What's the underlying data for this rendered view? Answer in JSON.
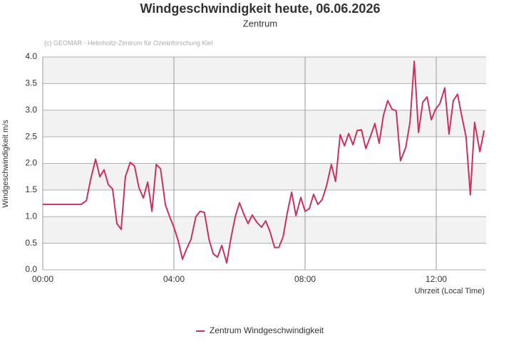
{
  "chart_data": {
    "type": "line",
    "title": "Windgeschwindigkeit heute, 06.06.2026",
    "subtitle": "Zentrum",
    "credit": "(c) GEOMAR - Helmholtz-Zentrum für Ozeanforschung Kiel",
    "y_label": "Windgeschwindigkeit m/s",
    "x_label": "Uhrzeit (Local Time)",
    "x": [
      0,
      1.17,
      1.33,
      1.46,
      1.61,
      1.74,
      1.87,
      2.0,
      2.13,
      2.26,
      2.39,
      2.52,
      2.67,
      2.8,
      2.93,
      3.07,
      3.2,
      3.33,
      3.46,
      3.59,
      3.74,
      3.87,
      4.0,
      4.13,
      4.26,
      4.39,
      4.52,
      4.67,
      4.8,
      4.93,
      5.07,
      5.2,
      5.33,
      5.46,
      5.61,
      5.74,
      5.87,
      6.0,
      6.13,
      6.26,
      6.39,
      6.52,
      6.67,
      6.8,
      6.93,
      7.07,
      7.2,
      7.33,
      7.46,
      7.59,
      7.72,
      7.87,
      8.0,
      8.13,
      8.26,
      8.39,
      8.52,
      8.65,
      8.8,
      8.93,
      9.07,
      9.2,
      9.33,
      9.46,
      9.59,
      9.72,
      9.85,
      10.0,
      10.13,
      10.26,
      10.39,
      10.52,
      10.65,
      10.78,
      10.91,
      11.07,
      11.2,
      11.33,
      11.46,
      11.59,
      11.72,
      11.85,
      11.98,
      12.11,
      12.26,
      12.39,
      12.52,
      12.65,
      12.78,
      12.91,
      13.04,
      13.17,
      13.33,
      13.46
    ],
    "series": [
      {
        "name": "Zentrum Windgeschwindigkeit",
        "color": "#c9315e",
        "values": [
          1.23,
          1.23,
          1.3,
          1.7,
          2.08,
          1.75,
          1.88,
          1.6,
          1.52,
          0.87,
          0.76,
          1.75,
          2.02,
          1.95,
          1.55,
          1.35,
          1.65,
          1.1,
          1.98,
          1.9,
          1.22,
          1.0,
          0.8,
          0.55,
          0.2,
          0.4,
          0.57,
          1.0,
          1.1,
          1.08,
          0.57,
          0.3,
          0.24,
          0.46,
          0.13,
          0.6,
          1.0,
          1.26,
          1.05,
          0.87,
          1.03,
          0.9,
          0.8,
          0.92,
          0.72,
          0.42,
          0.42,
          0.62,
          1.08,
          1.46,
          1.02,
          1.36,
          1.1,
          1.15,
          1.42,
          1.23,
          1.32,
          1.57,
          1.98,
          1.66,
          2.54,
          2.33,
          2.56,
          2.35,
          2.62,
          2.63,
          2.28,
          2.52,
          2.75,
          2.38,
          2.9,
          3.18,
          3.02,
          2.99,
          2.05,
          2.3,
          2.78,
          3.92,
          2.58,
          3.15,
          3.25,
          2.82,
          3.02,
          3.12,
          3.42,
          2.55,
          3.18,
          3.3,
          2.88,
          2.5,
          1.41,
          2.77,
          2.22,
          2.62
        ]
      }
    ],
    "xlim": [
      0,
      13.52
    ],
    "xticks": [
      {
        "value": 0,
        "label": "00:00"
      },
      {
        "value": 4,
        "label": "04:00"
      },
      {
        "value": 8,
        "label": "08:00"
      },
      {
        "value": 12,
        "label": "12:00"
      }
    ],
    "ylim": [
      0,
      4
    ],
    "yticks": [
      {
        "value": 0,
        "label": "0.0"
      },
      0.5,
      {
        "value": 1,
        "label": "1.0"
      },
      1.5,
      {
        "value": 2,
        "label": "2.0"
      },
      2.5,
      {
        "value": 3,
        "label": "3.0"
      },
      3.5,
      {
        "value": 4,
        "label": "4.0"
      }
    ],
    "grid": true,
    "bands": true,
    "legend": "bottom"
  }
}
